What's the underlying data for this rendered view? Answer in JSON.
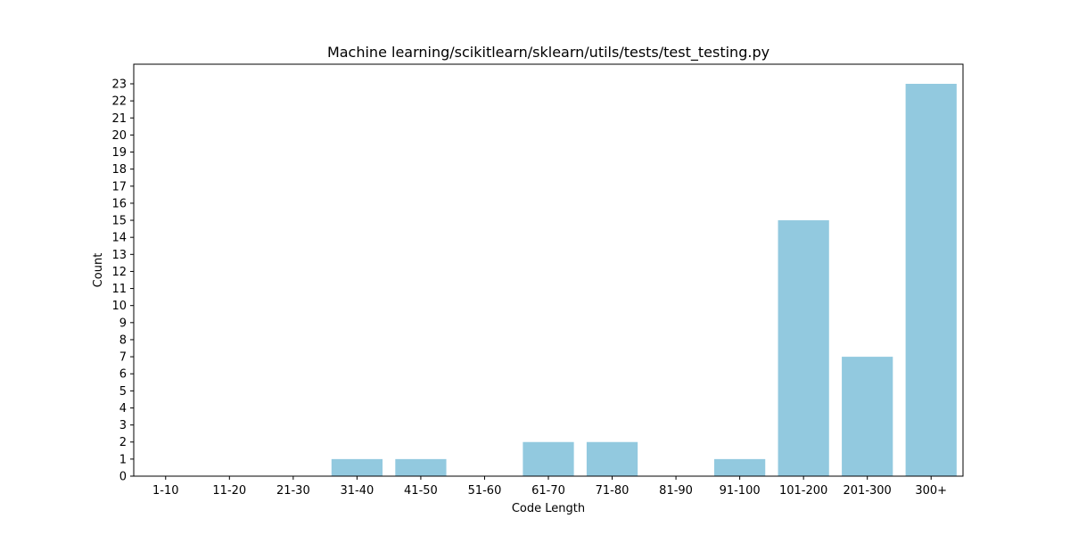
{
  "chart_data": {
    "type": "bar",
    "title": "Machine learning/scikitlearn/sklearn/utils/tests/test_testing.py",
    "xlabel": "Code Length",
    "ylabel": "Count",
    "categories": [
      "1-10",
      "11-20",
      "21-30",
      "31-40",
      "41-50",
      "51-60",
      "61-70",
      "71-80",
      "81-90",
      "91-100",
      "101-200",
      "201-300",
      "300+"
    ],
    "values": [
      0,
      0,
      0,
      1,
      1,
      0,
      2,
      2,
      0,
      1,
      15,
      7,
      23
    ],
    "ylim": [
      0,
      24.15
    ],
    "yticks": [
      0,
      1,
      2,
      3,
      4,
      5,
      6,
      7,
      8,
      9,
      10,
      11,
      12,
      13,
      14,
      15,
      16,
      17,
      18,
      19,
      20,
      21,
      22,
      23
    ],
    "bar_color": "#92c9df",
    "grid": false,
    "legend": false
  }
}
